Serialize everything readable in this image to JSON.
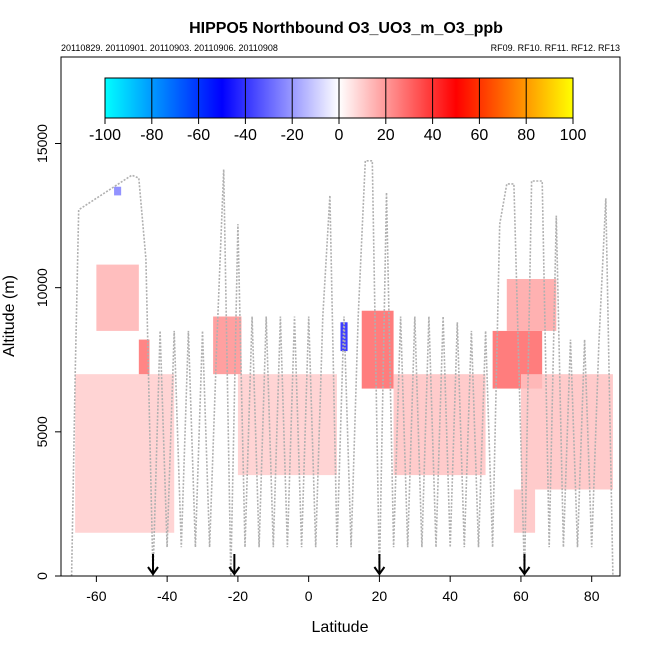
{
  "chart_data": {
    "type": "heatmap",
    "title": "HIPPO5 Northbound O3_UO3_m_O3_ppb",
    "subtitle_left": "20110829. 20110901. 20110903. 20110906. 20110908",
    "subtitle_right": "RF09. RF10. RF11. RF12. RF13",
    "xlabel": "Latitude",
    "ylabel": "Altitude (m)",
    "xlim": [
      -70,
      88
    ],
    "ylim": [
      0,
      18000
    ],
    "x_ticks": [
      -60,
      -40,
      -20,
      0,
      20,
      40,
      60,
      80
    ],
    "x_tick_labels": [
      "-60",
      "-40",
      "-20",
      "0",
      "20",
      "40",
      "60",
      "80"
    ],
    "y_ticks": [
      0,
      5000,
      10000,
      15000
    ],
    "y_tick_labels": [
      "0",
      "5000",
      "10000",
      "15000"
    ],
    "colorbar": {
      "range": [
        -100,
        100
      ],
      "ticks": [
        -100,
        -80,
        -60,
        -40,
        -20,
        0,
        20,
        40,
        60,
        80,
        100
      ],
      "tick_labels": [
        "-100",
        "-80",
        "-60",
        "-40",
        "-20",
        "0",
        "20",
        "40",
        "60",
        "80",
        "100"
      ],
      "colors": [
        "#00ffff",
        "#0000ff",
        "#ffffff",
        "#ff0000",
        "#ffff00"
      ]
    },
    "flight_boundary_markers": [
      -44,
      -21,
      20,
      61
    ],
    "cells": [
      {
        "lat": [
          -66,
          -38
        ],
        "alt": [
          1500,
          7000
        ],
        "value": 10
      },
      {
        "lat": [
          -60,
          -48
        ],
        "alt": [
          8500,
          10800
        ],
        "value": 15
      },
      {
        "lat": [
          -48,
          -45
        ],
        "alt": [
          7000,
          8200
        ],
        "value": 28
      },
      {
        "lat": [
          -27,
          -19
        ],
        "alt": [
          7000,
          9000
        ],
        "value": 22
      },
      {
        "lat": [
          -20,
          8
        ],
        "alt": [
          3500,
          7000
        ],
        "value": 10
      },
      {
        "lat": [
          9,
          11
        ],
        "alt": [
          7800,
          8800
        ],
        "value": -45
      },
      {
        "lat": [
          15,
          24
        ],
        "alt": [
          6500,
          9200
        ],
        "value": 30
      },
      {
        "lat": [
          24,
          50
        ],
        "alt": [
          3500,
          7000
        ],
        "value": 12
      },
      {
        "lat": [
          52,
          66
        ],
        "alt": [
          6500,
          8500
        ],
        "value": 30
      },
      {
        "lat": [
          56,
          70
        ],
        "alt": [
          8500,
          10300
        ],
        "value": 18
      },
      {
        "lat": [
          58,
          64
        ],
        "alt": [
          1500,
          3000
        ],
        "value": 12
      },
      {
        "lat": [
          60,
          86
        ],
        "alt": [
          3000,
          7000
        ],
        "value": 12
      },
      {
        "lat": [
          -55,
          -53
        ],
        "alt": [
          13200,
          13500
        ],
        "value": -25
      }
    ],
    "flight_track": [
      [
        -67,
        0
      ],
      [
        -66,
        7000
      ],
      [
        -65,
        12700
      ],
      [
        -50,
        13900
      ],
      [
        -48,
        13800
      ],
      [
        -46,
        11000
      ],
      [
        -44,
        0
      ],
      [
        -42,
        8500
      ],
      [
        -40,
        1000
      ],
      [
        -38,
        8500
      ],
      [
        -36,
        1000
      ],
      [
        -34,
        8500
      ],
      [
        -32,
        1000
      ],
      [
        -30,
        8500
      ],
      [
        -28,
        1000
      ],
      [
        -26,
        8000
      ],
      [
        -24,
        14100
      ],
      [
        -22,
        0
      ],
      [
        -20,
        12200
      ],
      [
        -18,
        1000
      ],
      [
        -16,
        9000
      ],
      [
        -14,
        1000
      ],
      [
        -12,
        9000
      ],
      [
        -10,
        1000
      ],
      [
        -8,
        9000
      ],
      [
        -6,
        1000
      ],
      [
        -4,
        9000
      ],
      [
        -2,
        1000
      ],
      [
        0,
        9000
      ],
      [
        2,
        1000
      ],
      [
        4,
        9000
      ],
      [
        6,
        13200
      ],
      [
        8,
        1000
      ],
      [
        10,
        9000
      ],
      [
        12,
        1000
      ],
      [
        14,
        9000
      ],
      [
        16,
        14400
      ],
      [
        18,
        14400
      ],
      [
        20,
        0
      ],
      [
        22,
        13300
      ],
      [
        24,
        1000
      ],
      [
        26,
        9000
      ],
      [
        28,
        1000
      ],
      [
        30,
        9000
      ],
      [
        32,
        1000
      ],
      [
        34,
        9000
      ],
      [
        36,
        1000
      ],
      [
        38,
        9000
      ],
      [
        40,
        1000
      ],
      [
        42,
        8800
      ],
      [
        44,
        1000
      ],
      [
        46,
        8500
      ],
      [
        48,
        1000
      ],
      [
        50,
        8500
      ],
      [
        52,
        1000
      ],
      [
        54,
        12200
      ],
      [
        56,
        13600
      ],
      [
        58,
        13600
      ],
      [
        61,
        0
      ],
      [
        63,
        13700
      ],
      [
        66,
        13700
      ],
      [
        68,
        1000
      ],
      [
        70,
        12500
      ],
      [
        72,
        1000
      ],
      [
        74,
        8200
      ],
      [
        76,
        1000
      ],
      [
        78,
        8200
      ],
      [
        80,
        1000
      ],
      [
        82,
        8000
      ],
      [
        84,
        13100
      ],
      [
        86,
        0
      ]
    ]
  }
}
